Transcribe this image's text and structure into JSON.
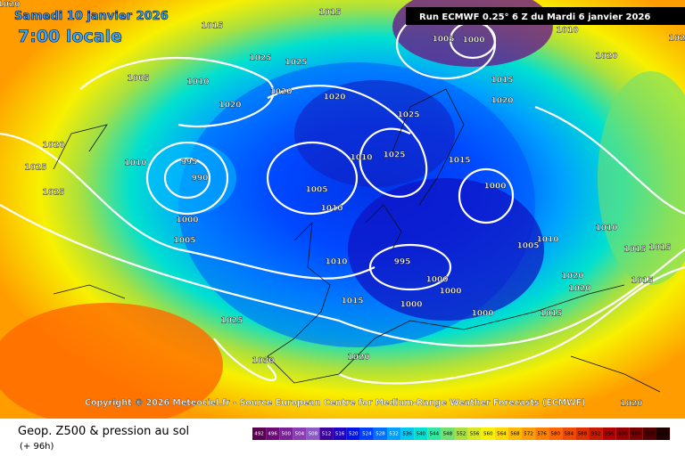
{
  "header": {
    "date": "Samedi 10 janvier 2026",
    "time": "7:00 locale",
    "run": "Run ECMWF 0.25° 6 Z du Mardi 6 janvier 2026"
  },
  "copyright": "Copyright © 2026 Meteociel.fr - Source European Centre for Medium-Range Weather Forecasts (ECMWF)",
  "footer": {
    "title": "Geop. Z500 & pression au sol",
    "lead": "(+ 96h)"
  },
  "isobar_labels": [
    1020,
    1015,
    1015,
    1005,
    1000,
    1015,
    1020,
    1010,
    1020,
    1025,
    1025,
    1025,
    1005,
    1010,
    1020,
    1020,
    1020,
    1025,
    1020,
    1010,
    995,
    990,
    1010,
    1025,
    1015,
    1000,
    1025,
    1025,
    1005,
    1010,
    1000,
    1005,
    1010,
    995,
    1000,
    1000,
    1000,
    1015,
    1005,
    1010,
    1020,
    1020,
    1010,
    1015,
    1015,
    1015,
    1000,
    1015,
    1025,
    1030,
    1020,
    1020
  ],
  "scale": {
    "labels": [
      492,
      496,
      500,
      504,
      508,
      512,
      516,
      520,
      524,
      528,
      532,
      536,
      540,
      544,
      548,
      552,
      556,
      560,
      564,
      568,
      572,
      576,
      580,
      584,
      588,
      592,
      596,
      600,
      604,
      608,
      612
    ],
    "colors": [
      "#5a0050",
      "#6e0a78",
      "#7a2096",
      "#8a3cb4",
      "#8c5ac8",
      "#3c00a0",
      "#2000c8",
      "#0014e6",
      "#0040ff",
      "#0070ff",
      "#00a0ff",
      "#00c8f0",
      "#00e0d0",
      "#30e6a0",
      "#70e070",
      "#a8e040",
      "#d8e820",
      "#f8f000",
      "#ffd800",
      "#ffb800",
      "#ff9c00",
      "#ff8000",
      "#ff6400",
      "#f04a00",
      "#e03000",
      "#c81800",
      "#b40000",
      "#960000",
      "#780000",
      "#500000",
      "#200000"
    ]
  }
}
